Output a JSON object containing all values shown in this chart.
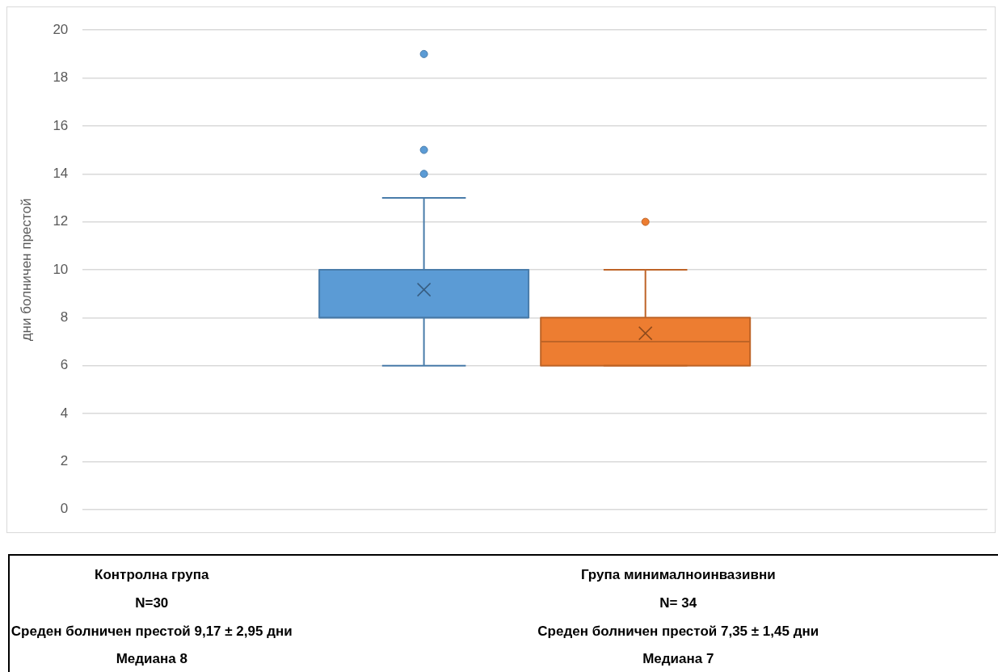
{
  "chart_data": {
    "type": "box",
    "ylabel": "дни болничен престой",
    "categories": [
      null
    ],
    "series": [
      {
        "color": "#5b9bd5",
        "boxes": [
          {
            "low": 6,
            "q1": 8,
            "median": 8,
            "q3": 10,
            "high": 13,
            "mean": 9.17,
            "outliers": [
              14,
              15,
              19
            ]
          }
        ]
      },
      {
        "color": "#ed7d31",
        "boxes": [
          {
            "low": 6,
            "q1": 6,
            "median": 7,
            "q3": 8,
            "high": 10,
            "mean": 7.35,
            "outliers": [
              12
            ]
          }
        ]
      }
    ],
    "ylim": [
      0,
      20
    ],
    "yticks": [
      0,
      2,
      4,
      6,
      8,
      10,
      12,
      14,
      16,
      18,
      20
    ],
    "grid": "y",
    "tick_labels": "y",
    "annotations": [
      "Контролна група",
      "Група минималноинвазивни",
      "N=30",
      "N= 34",
      "Среден болничен престой 9,17 ± 2,95 дни",
      "Среден болничен престой 7,35 ± 1,45 дни",
      "Медиана 8",
      "Медиана 7"
    ]
  }
}
